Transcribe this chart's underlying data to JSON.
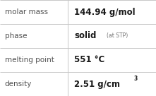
{
  "rows": [
    {
      "label": "molar mass",
      "value": "144.94 g/mol",
      "value_suffix": null,
      "superscript": null
    },
    {
      "label": "phase",
      "value": "solid",
      "value_suffix": "(at STP)",
      "superscript": null
    },
    {
      "label": "melting point",
      "value": "551 °C",
      "value_suffix": null,
      "superscript": null
    },
    {
      "label": "density",
      "value": "2.51 g/cm",
      "value_suffix": null,
      "superscript": "3"
    }
  ],
  "background_color": "#ffffff",
  "border_color": "#c8c8c8",
  "label_color": "#505050",
  "value_color": "#1a1a1a",
  "suffix_color": "#707070",
  "label_fontsize": 7.5,
  "value_fontsize": 8.5,
  "suffix_fontsize": 5.5,
  "sup_fontsize": 5.5,
  "col_split": 0.435,
  "figsize": [
    2.21,
    1.36
  ],
  "dpi": 100
}
